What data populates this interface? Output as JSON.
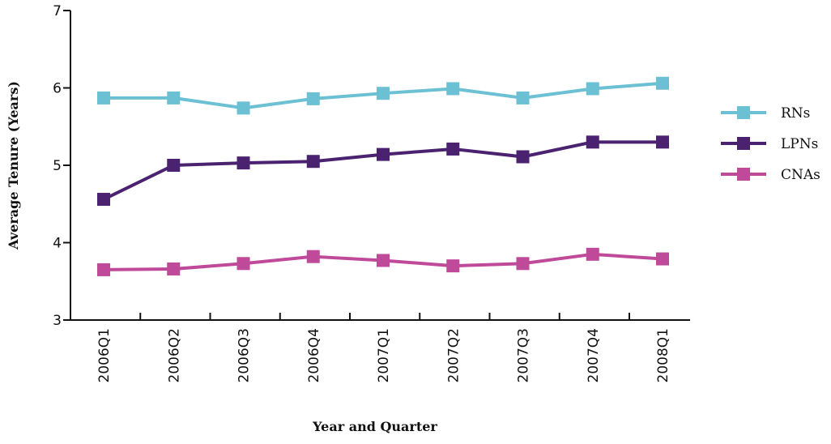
{
  "chart_data": {
    "type": "line",
    "xlabel": "Year and Quarter",
    "ylabel": "Average Tenure (Years)",
    "categories": [
      "2006Q1",
      "2006Q2",
      "2006Q3",
      "2006Q4",
      "2007Q1",
      "2007Q2",
      "2007Q3",
      "2007Q4",
      "2008Q1"
    ],
    "ylim": [
      3,
      7
    ],
    "yticks": [
      "3",
      "4",
      "5",
      "6",
      "7"
    ],
    "grid": false,
    "legend_position": "right",
    "series": [
      {
        "name": "RNs",
        "color": "#6cc0d3",
        "values": [
          5.87,
          5.87,
          5.74,
          5.86,
          5.93,
          5.99,
          5.87,
          5.99,
          6.06
        ]
      },
      {
        "name": "LPNs",
        "color": "#4a2270",
        "values": [
          4.56,
          5.0,
          5.03,
          5.05,
          5.14,
          5.21,
          5.11,
          5.3,
          5.3
        ]
      },
      {
        "name": "CNAs",
        "color": "#c04a9a",
        "values": [
          3.65,
          3.66,
          3.73,
          3.82,
          3.77,
          3.7,
          3.73,
          3.85,
          3.79
        ]
      }
    ]
  }
}
